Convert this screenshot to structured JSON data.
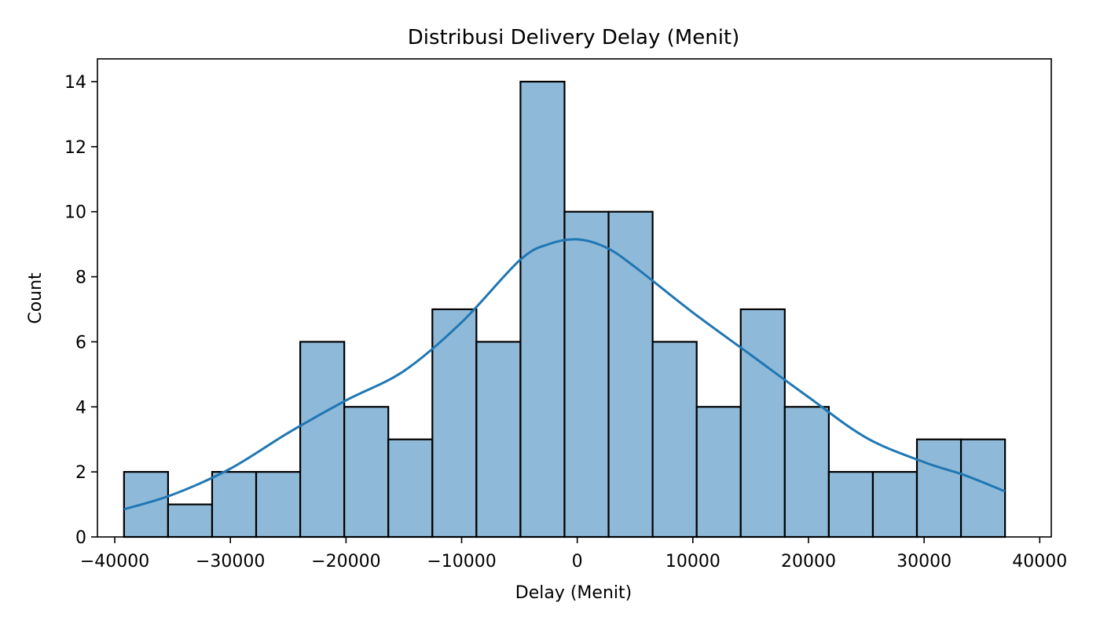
{
  "chart_data": {
    "type": "bar",
    "title": "Distribusi Delivery Delay (Menit)",
    "xlabel": "Delay (Menit)",
    "ylabel": "Count",
    "xlim": [
      -41500,
      41000
    ],
    "ylim": [
      0,
      14.7
    ],
    "xticks": [
      -40000,
      -30000,
      -20000,
      -10000,
      0,
      10000,
      20000,
      30000,
      40000
    ],
    "xtick_labels": [
      "−40000",
      "−30000",
      "−20000",
      "−10000",
      "0",
      "10000",
      "20000",
      "30000",
      "40000"
    ],
    "yticks": [
      0,
      2,
      4,
      6,
      8,
      10,
      12,
      14
    ],
    "ytick_labels": [
      "0",
      "2",
      "4",
      "6",
      "8",
      "10",
      "12",
      "14"
    ],
    "bin_edges": [
      -39200,
      -35390,
      -31580,
      -27770,
      -23960,
      -20150,
      -16340,
      -12530,
      -8720,
      -4910,
      -1100,
      2710,
      6520,
      10330,
      14140,
      17950,
      21760,
      25570,
      29380,
      33190,
      37000
    ],
    "counts": [
      2,
      1,
      2,
      2,
      6,
      4,
      3,
      7,
      6,
      14,
      10,
      10,
      6,
      4,
      7,
      4,
      2,
      2,
      3,
      3
    ],
    "kde": {
      "x": [
        -39200,
        -35000,
        -30000,
        -25000,
        -20000,
        -15000,
        -10000,
        -5000,
        -2500,
        0,
        2500,
        5000,
        10000,
        15000,
        20000,
        25000,
        30000,
        33500,
        37000
      ],
      "y": [
        0.85,
        1.3,
        2.1,
        3.2,
        4.2,
        5.1,
        6.6,
        8.5,
        9.0,
        9.15,
        8.9,
        8.3,
        6.9,
        5.6,
        4.3,
        3.05,
        2.3,
        1.9,
        1.4
      ]
    },
    "colors": {
      "bar_fill": "#8fb9d9",
      "kde_line": "#1f77b4"
    },
    "grid": false
  }
}
